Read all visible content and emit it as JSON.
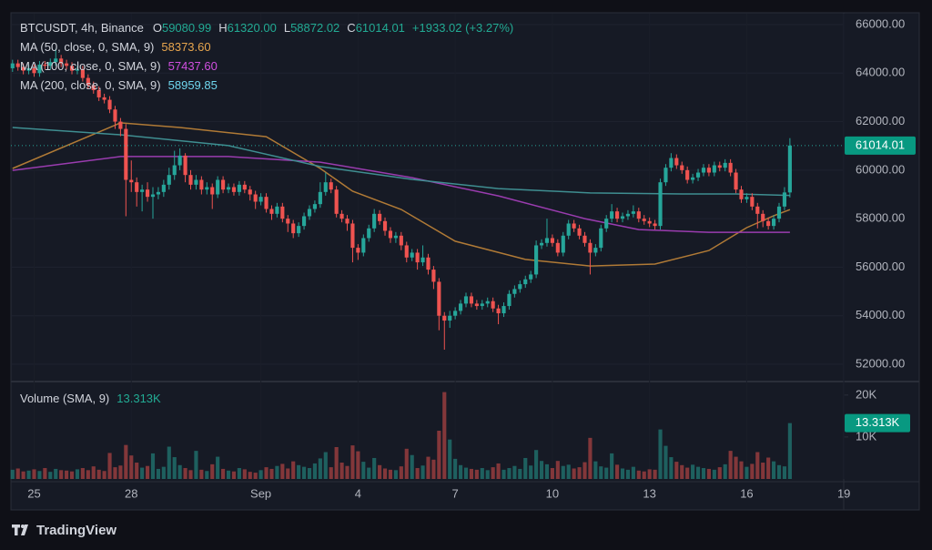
{
  "chart_data": {
    "type": "candlestick",
    "header": {
      "symbol": "BTCUSDT, 4h, Binance",
      "ohlc": [
        {
          "key": "O",
          "value": "59080.99"
        },
        {
          "key": "H",
          "value": "61320.00"
        },
        {
          "key": "L",
          "value": "58872.02"
        },
        {
          "key": "C",
          "value": "61014.01"
        }
      ],
      "change": "+1933.02 (+3.27%)"
    },
    "up_color": "#26a69a",
    "down_color": "#ef5350",
    "xlim": [
      -0.3,
      153.8
    ],
    "xticks": [
      {
        "value": 4,
        "label": "25"
      },
      {
        "value": 22,
        "label": "28"
      },
      {
        "value": 46,
        "label": "Sep"
      },
      {
        "value": 64,
        "label": "4"
      },
      {
        "value": 82,
        "label": "7"
      },
      {
        "value": 100,
        "label": "10"
      },
      {
        "value": 118,
        "label": "13"
      },
      {
        "value": 136,
        "label": "16"
      },
      {
        "value": 154,
        "label": "19"
      }
    ],
    "ylim": [
      51325,
      66450
    ],
    "yticks": [
      {
        "value": 52000,
        "label": "52000.00"
      },
      {
        "value": 54000,
        "label": "54000.00"
      },
      {
        "value": 56000,
        "label": "56000.00"
      },
      {
        "value": 58000,
        "label": "58000.00"
      },
      {
        "value": 60000,
        "label": "60000.00"
      },
      {
        "value": 62000,
        "label": "62000.00"
      },
      {
        "value": 64000,
        "label": "64000.00"
      },
      {
        "value": 66000,
        "label": "66000.00"
      }
    ],
    "last_price": {
      "value": 61014.01,
      "label": "61014.01"
    },
    "open": [
      64200,
      64400,
      64250,
      64100,
      64200,
      64000,
      64350,
      64300,
      64450,
      64600,
      64400,
      64300,
      64100,
      64150,
      63800,
      63500,
      63300,
      63000,
      62900,
      62500,
      62000,
      61700,
      59600,
      59500,
      59100,
      59200,
      58900,
      59000,
      59100,
      59400,
      59800,
      60200,
      60600,
      59800,
      59400,
      59600,
      59200,
      59300,
      59000,
      59600,
      59200,
      59300,
      59100,
      59400,
      59200,
      59000,
      58700,
      58900,
      58400,
      58200,
      58500,
      58000,
      57800,
      57400,
      57700,
      58100,
      58400,
      58600,
      59100,
      59500,
      59200,
      58200,
      58000,
      57800,
      56800,
      56600,
      57200,
      57600,
      58200,
      57900,
      57500,
      57200,
      57300,
      56900,
      56400,
      56600,
      56200,
      56400,
      55900,
      55400,
      54000,
      53800,
      54000,
      54200,
      54500,
      54800,
      54500,
      54400,
      54500,
      54600,
      54300,
      54100,
      54400,
      54900,
      55100,
      55300,
      55500,
      55700,
      56900,
      57000,
      57200,
      57000,
      56600,
      57300,
      57800,
      57600,
      57300,
      57000,
      56600,
      56800,
      57600,
      58000,
      58300,
      58000,
      58100,
      58200,
      58300,
      58000,
      57900,
      57800,
      57700,
      59500,
      60100,
      60500,
      60200,
      60000,
      59600,
      59700,
      59900,
      60100,
      59900,
      60200,
      60100,
      60300,
      59900,
      59200,
      58800,
      58900,
      58500,
      58200,
      57900,
      57700,
      58000,
      58500,
      59080.99
    ],
    "high": [
      64550,
      64550,
      64400,
      64350,
      64350,
      64500,
      64500,
      64600,
      65000,
      64750,
      64550,
      64450,
      64300,
      64300,
      63950,
      63650,
      63450,
      63150,
      63050,
      62650,
      62150,
      61900,
      60400,
      59700,
      59400,
      59500,
      59300,
      59300,
      59600,
      60100,
      60800,
      60900,
      60700,
      60000,
      59800,
      59750,
      59500,
      59450,
      59750,
      59750,
      59450,
      59450,
      59550,
      59550,
      59350,
      59150,
      59050,
      59050,
      58550,
      58650,
      58650,
      58150,
      57950,
      57850,
      58250,
      58550,
      58750,
      59500,
      59900,
      59650,
      59350,
      58350,
      58150,
      57950,
      56950,
      57350,
      57750,
      58400,
      58350,
      58050,
      57650,
      57450,
      57450,
      57050,
      56750,
      56750,
      56900,
      56550,
      56050,
      55550,
      54150,
      54200,
      54350,
      54650,
      54950,
      54950,
      54650,
      54650,
      54750,
      54750,
      54450,
      54550,
      55050,
      55250,
      55450,
      55650,
      55850,
      57100,
      57150,
      58000,
      57350,
      57150,
      57450,
      57950,
      57950,
      57750,
      57450,
      57150,
      56950,
      57750,
      58150,
      58600,
      58450,
      58250,
      58350,
      58550,
      58450,
      58150,
      58050,
      57950,
      59650,
      60250,
      60700,
      60650,
      60350,
      60150,
      59850,
      60050,
      60250,
      60250,
      60350,
      60350,
      60450,
      60450,
      60050,
      59350,
      59050,
      59050,
      58650,
      58350,
      58050,
      58150,
      58650,
      59300,
      61320
    ],
    "low": [
      64050,
      64100,
      63950,
      63950,
      63850,
      63850,
      64150,
      64150,
      64300,
      64250,
      64150,
      63950,
      63950,
      63650,
      63350,
      63150,
      62850,
      62750,
      62350,
      61700,
      61400,
      58100,
      59100,
      58500,
      58300,
      58700,
      58000,
      58800,
      58900,
      59200,
      59600,
      60000,
      59500,
      59200,
      59200,
      59000,
      59000,
      58400,
      58850,
      59050,
      59050,
      58950,
      58950,
      59050,
      58750,
      58400,
      58550,
      58250,
      57950,
      58050,
      57850,
      57450,
      57200,
      57250,
      57550,
      57950,
      58250,
      58450,
      58950,
      59050,
      58050,
      57850,
      57500,
      56200,
      56300,
      56450,
      57050,
      57450,
      57750,
      57300,
      57000,
      57000,
      56700,
      56200,
      56250,
      55900,
      56050,
      55700,
      55100,
      53400,
      52600,
      53500,
      53850,
      54050,
      54350,
      54350,
      54250,
      54250,
      54350,
      54150,
      53650,
      53950,
      54250,
      54750,
      54950,
      55150,
      55350,
      55550,
      56750,
      56850,
      56850,
      56450,
      56450,
      57150,
      57450,
      57150,
      56850,
      55700,
      56450,
      56650,
      57450,
      57850,
      57850,
      57850,
      57950,
      58050,
      57850,
      57750,
      57650,
      57550,
      57550,
      59350,
      59950,
      60050,
      59850,
      59450,
      59450,
      59550,
      59750,
      59750,
      59750,
      59950,
      59950,
      59750,
      59050,
      58650,
      58650,
      58350,
      57600,
      57650,
      57550,
      57550,
      57850,
      58350,
      58872.02
    ],
    "close": [
      64400,
      64250,
      64100,
      64200,
      64000,
      64350,
      64300,
      64450,
      64600,
      64400,
      64300,
      64100,
      64150,
      63800,
      63500,
      63300,
      63000,
      62900,
      62500,
      62000,
      61700,
      59600,
      59500,
      59100,
      59200,
      58900,
      59000,
      59100,
      59400,
      59800,
      60200,
      60600,
      59800,
      59400,
      59600,
      59200,
      59300,
      59000,
      59600,
      59200,
      59300,
      59100,
      59400,
      59200,
      59000,
      58700,
      58900,
      58400,
      58200,
      58500,
      58000,
      57800,
      57400,
      57700,
      58100,
      58400,
      58600,
      59100,
      59500,
      59200,
      58200,
      58000,
      57800,
      56800,
      56600,
      57200,
      57600,
      58200,
      57900,
      57500,
      57200,
      57300,
      56900,
      56400,
      56600,
      56200,
      56400,
      55900,
      55400,
      54000,
      53800,
      54000,
      54200,
      54500,
      54800,
      54500,
      54400,
      54500,
      54600,
      54300,
      54100,
      54400,
      54900,
      55100,
      55300,
      55500,
      55700,
      56900,
      57000,
      57200,
      57000,
      56600,
      57300,
      57800,
      57600,
      57300,
      57000,
      56600,
      56800,
      57600,
      58000,
      58300,
      58000,
      58100,
      58200,
      58300,
      58000,
      57900,
      57800,
      57700,
      59500,
      60100,
      60500,
      60200,
      60000,
      59600,
      59700,
      59900,
      60100,
      59900,
      60200,
      60100,
      60300,
      59900,
      59200,
      58800,
      58900,
      58500,
      58200,
      57900,
      57700,
      58000,
      58500,
      59080.99,
      61014.01
    ],
    "volume": [
      2200,
      2500,
      1800,
      2000,
      2300,
      1900,
      2600,
      1700,
      2400,
      2100,
      2000,
      1800,
      2300,
      2600,
      2100,
      3000,
      2200,
      1900,
      6200,
      2800,
      3200,
      8100,
      5600,
      3900,
      2700,
      3100,
      6100,
      2400,
      2900,
      7700,
      5200,
      3300,
      2600,
      2100,
      6700,
      2200,
      1900,
      3500,
      5300,
      2400,
      2000,
      1800,
      2600,
      2300,
      1700,
      1500,
      2100,
      2800,
      2400,
      3100,
      3600,
      2500,
      4200,
      3300,
      2900,
      2600,
      3700,
      4900,
      6400,
      2800,
      7600,
      3900,
      3100,
      8000,
      6600,
      4100,
      2700,
      5000,
      3300,
      2500,
      2200,
      2100,
      3000,
      7200,
      5700,
      2600,
      3200,
      5300,
      4600,
      11500,
      20700,
      9400,
      4800,
      3300,
      2700,
      2400,
      2200,
      2600,
      2100,
      2800,
      3700,
      2200,
      2600,
      3100,
      2400,
      5000,
      3200,
      6900,
      4300,
      3500,
      2600,
      4300,
      3100,
      3400,
      2500,
      2800,
      4000,
      9800,
      4200,
      3000,
      2700,
      6100,
      3400,
      2500,
      2200,
      2900,
      2000,
      1800,
      2300,
      2200,
      11800,
      7900,
      5200,
      4100,
      3300,
      2700,
      3400,
      2900,
      2600,
      2400,
      2200,
      2800,
      3500,
      6700,
      5300,
      4200,
      2900,
      3600,
      6400,
      3900,
      5100,
      4200,
      3300,
      3000,
      13313
    ],
    "volume_title": "Volume (SMA, 9)",
    "volume_last": {
      "value": 13313,
      "label": "13.313K"
    },
    "vol_ylim": [
      0,
      23000
    ],
    "vol_yticks": [
      {
        "value": 10000,
        "label": "10K"
      },
      {
        "value": 20000,
        "label": "20K"
      }
    ],
    "ma": [
      {
        "name": "MA (50, close, 0, SMA, 9)",
        "color": "#e8a64e",
        "line_color": "#b07a36",
        "last_label": "58373.60",
        "x": [
          0,
          20,
          31,
          47,
          57,
          63,
          72,
          82,
          95,
          107,
          119,
          129,
          136,
          141,
          144
        ],
        "values": [
          60070,
          61950,
          61760,
          61380,
          60070,
          59130,
          58380,
          57070,
          56320,
          56050,
          56130,
          56690,
          57630,
          58120,
          58373.6
        ]
      },
      {
        "name": "MA (100, close, 0, SMA, 9)",
        "color": "#d14fe0",
        "line_color": "#9a3caf",
        "last_label": "57437.60",
        "x": [
          0,
          20,
          40,
          57,
          74,
          90,
          106,
          116,
          129,
          144
        ],
        "values": [
          59990,
          60560,
          60560,
          60330,
          59690,
          58940,
          58000,
          57550,
          57440,
          57437.6
        ]
      },
      {
        "name": "MA (200, close, 0, SMA, 9)",
        "color": "#6fd6ee",
        "line_color": "#3f8e91",
        "last_label": "58959.85",
        "x": [
          0,
          20,
          40,
          57,
          74,
          90,
          107,
          124,
          134,
          144
        ],
        "values": [
          61760,
          61460,
          61010,
          60150,
          59620,
          59240,
          59060,
          59020,
          59020,
          58959.85
        ]
      }
    ],
    "brand": "TradingView"
  }
}
